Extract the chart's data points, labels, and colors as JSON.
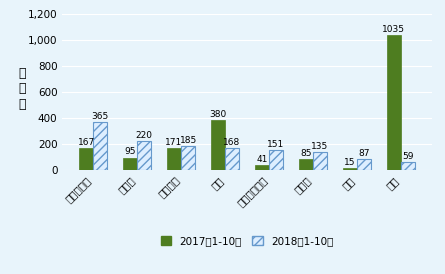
{
  "categories": [
    "マレーシア",
    "トルコ",
    "ベトナム",
    "香港",
    "インドネシア",
    "インド",
    "台湾",
    "中国"
  ],
  "values_2017": [
    167,
    95,
    171,
    380,
    41,
    85,
    15,
    1035
  ],
  "values_2018": [
    365,
    220,
    185,
    168,
    151,
    135,
    87,
    59
  ],
  "color_2017": "#4e7d20",
  "color_2018_face": "#ddeeff",
  "color_2018_edge": "#6699cc",
  "ylabel_chars": [
    "輸",
    "出",
    "先"
  ],
  "legend_2017": "2017年1-10月",
  "legend_2018": "2018年1-10月",
  "ylim": [
    0,
    1200
  ],
  "yticks": [
    0,
    200,
    400,
    600,
    800,
    1000,
    1200
  ],
  "background_color": "#e8f4fb",
  "bar_width": 0.32,
  "label_fontsize": 6.5,
  "tick_fontsize": 7.5,
  "grid_color": "#ffffff"
}
